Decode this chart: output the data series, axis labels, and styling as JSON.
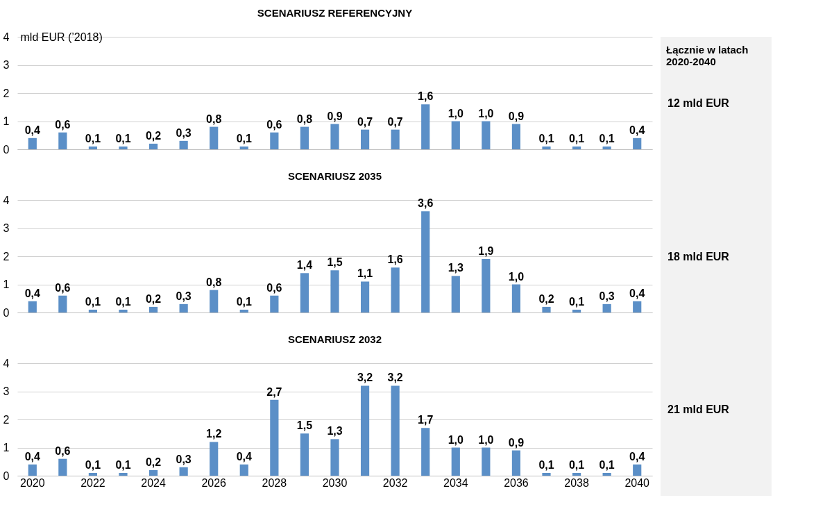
{
  "chart_data": [
    {
      "type": "bar",
      "title": "SCENARIUSZ REFERENCYJNY",
      "ylabel": "mld EUR (’2018)",
      "categories": [
        "2020",
        null,
        "2022",
        null,
        "2024",
        null,
        "2026",
        null,
        "2028",
        null,
        "2030",
        null,
        "2032",
        null,
        "2034",
        null,
        "2036",
        null,
        "2038",
        null,
        "2040"
      ],
      "color": "#5b8fc7",
      "values": [
        0.4,
        0.6,
        0.1,
        0.1,
        0.2,
        0.3,
        0.8,
        0.1,
        0.6,
        0.8,
        0.9,
        0.7,
        0.7,
        1.6,
        1.0,
        1.0,
        0.9,
        0.1,
        0.1,
        0.1,
        0.4
      ],
      "value_labels": [
        "0,4",
        "0,6",
        "0,1",
        "0,1",
        "0,2",
        "0,3",
        "0,8",
        "0,1",
        "0,6",
        "0,8",
        "0,9",
        "0,7",
        "0,7",
        "1,6",
        "1,0",
        "1,0",
        "0,9",
        "0,1",
        "0,1",
        "0,1",
        "0,4"
      ],
      "ylim": [
        0,
        4
      ],
      "yticks": [
        0,
        1,
        2,
        3,
        4
      ],
      "grid": "y",
      "tick_labels": "y"
    },
    {
      "type": "bar",
      "title": "SCENARIUSZ 2035",
      "categories": [
        "2020",
        null,
        "2022",
        null,
        "2024",
        null,
        "2026",
        null,
        "2028",
        null,
        "2030",
        null,
        "2032",
        null,
        "2034",
        null,
        "2036",
        null,
        "2038",
        null,
        "2040"
      ],
      "color": "#5b8fc7",
      "values": [
        0.4,
        0.6,
        0.1,
        0.1,
        0.2,
        0.3,
        0.8,
        0.1,
        0.6,
        1.4,
        1.5,
        1.1,
        1.6,
        3.6,
        1.3,
        1.9,
        1.0,
        0.2,
        0.1,
        0.3,
        0.4
      ],
      "value_labels": [
        "0,4",
        "0,6",
        "0,1",
        "0,1",
        "0,2",
        "0,3",
        "0,8",
        "0,1",
        "0,6",
        "1,4",
        "1,5",
        "1,1",
        "1,6",
        "3,6",
        "1,3",
        "1,9",
        "1,0",
        "0,2",
        "0,1",
        "0,3",
        "0,4"
      ],
      "ylim": [
        0,
        4
      ],
      "yticks": [
        0,
        1,
        2,
        3,
        4
      ],
      "grid": "y",
      "tick_labels": "y"
    },
    {
      "type": "bar",
      "title": "SCENARIUSZ 2032",
      "categories": [
        "2020",
        null,
        "2022",
        null,
        "2024",
        null,
        "2026",
        null,
        "2028",
        null,
        "2030",
        null,
        "2032",
        null,
        "2034",
        null,
        "2036",
        null,
        "2038",
        null,
        "2040"
      ],
      "color": "#5b8fc7",
      "values": [
        0.4,
        0.6,
        0.1,
        0.1,
        0.2,
        0.3,
        1.2,
        0.4,
        2.7,
        1.5,
        1.3,
        3.2,
        3.2,
        1.7,
        1.0,
        1.0,
        0.9,
        0.1,
        0.1,
        0.1,
        0.4
      ],
      "value_labels": [
        "0,4",
        "0,6",
        "0,1",
        "0,1",
        "0,2",
        "0,3",
        "1,2",
        "0,4",
        "2,7",
        "1,5",
        "1,3",
        "3,2",
        "3,2",
        "1,7",
        "1,0",
        "1,0",
        "0,9",
        "0,1",
        "0,1",
        "0,1",
        "0,4"
      ],
      "ylim": [
        0,
        4
      ],
      "yticks": [
        0,
        1,
        2,
        3,
        4
      ],
      "grid": "y"
    },
    {
      "type": "other",
      "title": "Łącznie w latach 2020-2040",
      "annotations": [
        "12 mld EUR",
        "18 mld EUR",
        "21 mld EUR"
      ]
    }
  ]
}
